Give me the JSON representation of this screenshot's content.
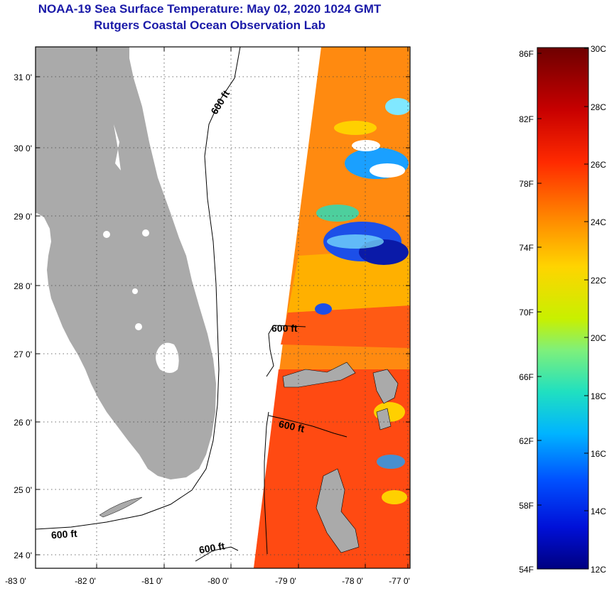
{
  "title": {
    "line1": "NOAA-19 Sea Surface Temperature:  May 02, 2020 1024 GMT",
    "line2": "Rutgers Coastal Ocean Observation Lab"
  },
  "map": {
    "lat_ticks": [
      "31 0'",
      "30 0'",
      "29 0'",
      "28 0'",
      "27 0'",
      "26 0'",
      "25 0'",
      "24 0'"
    ],
    "lon_ticks": [
      "-83 0'",
      "-82 0'",
      "-81 0'",
      "-80 0'",
      "-79 0'",
      "-78 0'",
      "-77 0'"
    ],
    "isobath_labels": [
      "600 ft",
      "600 ft",
      "600 ft",
      "600 ft",
      "600 ft"
    ],
    "land_color": "#aaaaaa",
    "isobath_color": "#000000"
  },
  "colorbar": {
    "fahrenheit": [
      "86F",
      "82F",
      "78F",
      "74F",
      "70F",
      "66F",
      "62F",
      "58F",
      "54F"
    ],
    "celsius": [
      "30C",
      "28C",
      "26C",
      "24C",
      "22C",
      "20C",
      "18C",
      "16C",
      "14C",
      "12C"
    ]
  }
}
